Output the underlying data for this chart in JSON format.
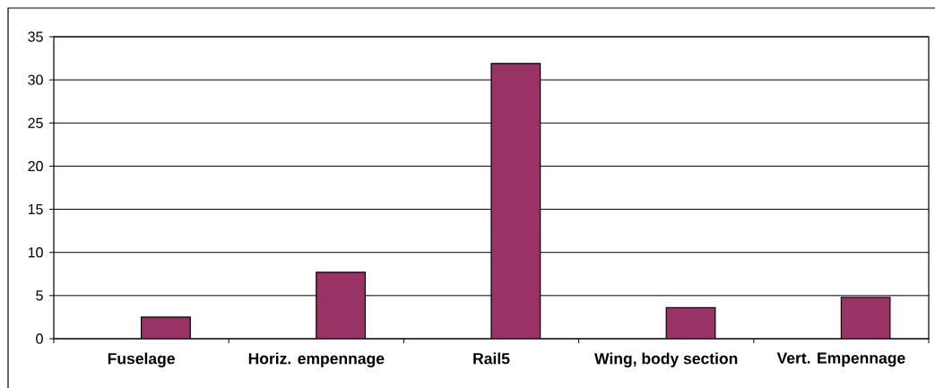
{
  "chart_data": {
    "type": "bar",
    "categories": [
      "Fuselage",
      "Horiz. empennage",
      "Rail5",
      "Wing, body section",
      "Vert. Empennage"
    ],
    "values": [
      2.5,
      7.7,
      31.9,
      3.6,
      4.8
    ],
    "color": "#993366",
    "ylim": [
      0,
      35
    ],
    "yticks": [
      0,
      5,
      10,
      15,
      20,
      25,
      30,
      35
    ],
    "grid": "y"
  }
}
